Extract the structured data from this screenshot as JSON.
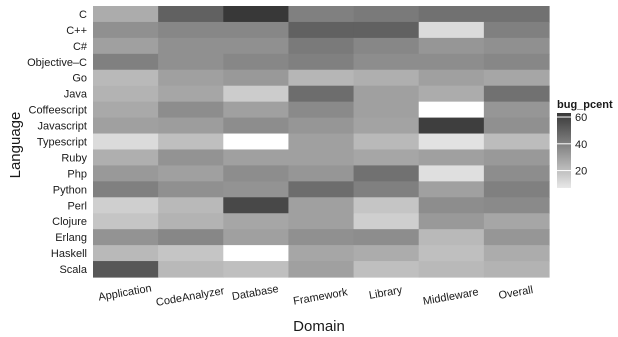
{
  "chart_data": {
    "type": "heatmap",
    "title": "",
    "xlabel": "Domain",
    "ylabel": "Language",
    "x_categories": [
      "Application",
      "CodeAnalyzer",
      "Database",
      "Framework",
      "Library",
      "Middleware",
      "Overall"
    ],
    "y_categories": [
      "C",
      "C++",
      "C#",
      "Objective–C",
      "Go",
      "Java",
      "Coffeescript",
      "Javascript",
      "Typescript",
      "Ruby",
      "Php",
      "Python",
      "Perl",
      "Clojure",
      "Erlang",
      "Haskell",
      "Scala"
    ],
    "values": [
      [
        26,
        50,
        65,
        40,
        42,
        45,
        45
      ],
      [
        35,
        38,
        38,
        50,
        50,
        11,
        40
      ],
      [
        30,
        35,
        35,
        42,
        38,
        33,
        35
      ],
      [
        40,
        35,
        38,
        40,
        36,
        36,
        38
      ],
      [
        22,
        30,
        32,
        23,
        25,
        30,
        28
      ],
      [
        24,
        28,
        16,
        46,
        30,
        26,
        45
      ],
      [
        27,
        36,
        30,
        37,
        30,
        12,
        33
      ],
      [
        30,
        31,
        36,
        33,
        29,
        61,
        35
      ],
      [
        11,
        20,
        12,
        30,
        22,
        9,
        21
      ],
      [
        25,
        34,
        30,
        30,
        28,
        30,
        32
      ],
      [
        32,
        30,
        36,
        33,
        45,
        10,
        36
      ],
      [
        40,
        35,
        34,
        46,
        40,
        30,
        40
      ],
      [
        15,
        22,
        58,
        30,
        18,
        36,
        37
      ],
      [
        18,
        24,
        28,
        30,
        15,
        32,
        28
      ],
      [
        34,
        38,
        30,
        35,
        36,
        22,
        33
      ],
      [
        22,
        18,
        10,
        28,
        26,
        20,
        26
      ],
      [
        53,
        22,
        20,
        30,
        20,
        22,
        24
      ]
    ],
    "white_cells": [
      [
        6,
        5
      ],
      [
        8,
        2
      ],
      [
        15,
        2
      ]
    ],
    "legend": {
      "title": "bug_pcent",
      "ticks": [
        20,
        40,
        60
      ],
      "range": [
        7,
        63
      ],
      "position": "right"
    },
    "color_scale": {
      "low": "#e8e8e8",
      "high": "#383838"
    }
  }
}
